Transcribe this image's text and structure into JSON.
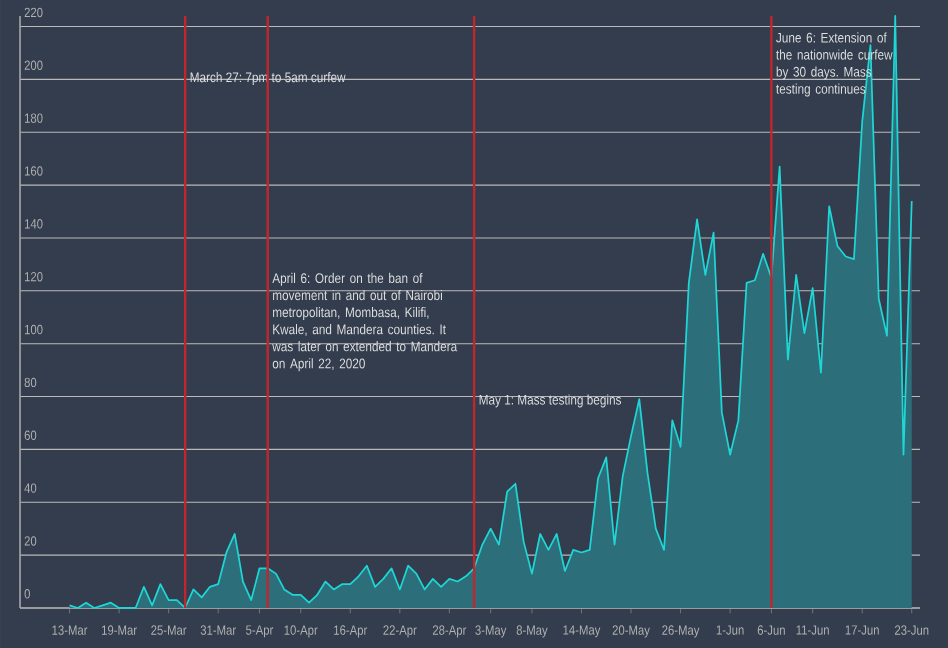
{
  "chart_data": {
    "type": "area",
    "x": [
      "2020-03-13",
      "2020-03-14",
      "2020-03-15",
      "2020-03-16",
      "2020-03-17",
      "2020-03-18",
      "2020-03-19",
      "2020-03-20",
      "2020-03-21",
      "2020-03-22",
      "2020-03-23",
      "2020-03-24",
      "2020-03-25",
      "2020-03-26",
      "2020-03-27",
      "2020-03-28",
      "2020-03-29",
      "2020-03-30",
      "2020-03-31",
      "2020-04-01",
      "2020-04-02",
      "2020-04-03",
      "2020-04-04",
      "2020-04-05",
      "2020-04-06",
      "2020-04-07",
      "2020-04-08",
      "2020-04-09",
      "2020-04-10",
      "2020-04-11",
      "2020-04-12",
      "2020-04-13",
      "2020-04-14",
      "2020-04-15",
      "2020-04-16",
      "2020-04-17",
      "2020-04-18",
      "2020-04-19",
      "2020-04-20",
      "2020-04-21",
      "2020-04-22",
      "2020-04-23",
      "2020-04-24",
      "2020-04-25",
      "2020-04-26",
      "2020-04-27",
      "2020-04-28",
      "2020-04-29",
      "2020-04-30",
      "2020-05-01",
      "2020-05-02",
      "2020-05-03",
      "2020-05-04",
      "2020-05-05",
      "2020-05-06",
      "2020-05-07",
      "2020-05-08",
      "2020-05-09",
      "2020-05-10",
      "2020-05-11",
      "2020-05-12",
      "2020-05-13",
      "2020-05-14",
      "2020-05-15",
      "2020-05-16",
      "2020-05-17",
      "2020-05-18",
      "2020-05-19",
      "2020-05-20",
      "2020-05-21",
      "2020-05-22",
      "2020-05-23",
      "2020-05-24",
      "2020-05-25",
      "2020-05-26",
      "2020-05-27",
      "2020-05-28",
      "2020-05-29",
      "2020-05-30",
      "2020-05-31",
      "2020-06-01",
      "2020-06-02",
      "2020-06-03",
      "2020-06-04",
      "2020-06-05",
      "2020-06-06",
      "2020-06-07",
      "2020-06-08",
      "2020-06-09",
      "2020-06-10",
      "2020-06-11",
      "2020-06-12",
      "2020-06-13",
      "2020-06-14",
      "2020-06-15",
      "2020-06-16",
      "2020-06-17",
      "2020-06-18",
      "2020-06-19",
      "2020-06-20",
      "2020-06-21",
      "2020-06-22",
      "2020-06-23"
    ],
    "series": [
      {
        "color": "#1fd6d6",
        "values": [
          1,
          0,
          2,
          0,
          1,
          2,
          0,
          0,
          0,
          8,
          1,
          9,
          3,
          3,
          0,
          7,
          4,
          8,
          9,
          21,
          28,
          10,
          3,
          15,
          15,
          13,
          7,
          5,
          5,
          2,
          5,
          10,
          7,
          9,
          9,
          12,
          16,
          8,
          11,
          15,
          7,
          16,
          13,
          7,
          11,
          8,
          11,
          10,
          12,
          15,
          24,
          30,
          24,
          44,
          47,
          25,
          13,
          28,
          22,
          28,
          14,
          22,
          21,
          22,
          49,
          57,
          24,
          50,
          65,
          79,
          51,
          30,
          22,
          71,
          61,
          123,
          147,
          126,
          142,
          74,
          58,
          71,
          123,
          124,
          134,
          125,
          167,
          94,
          126,
          104,
          121,
          89,
          152,
          137,
          133,
          132,
          184,
          213,
          117,
          103,
          224,
          58,
          154
        ]
      }
    ],
    "xlim": [
      "2020-03-07",
      "2020-06-24"
    ],
    "xticks": [
      {
        "value": "2020-03-13",
        "label": "13-Mar"
      },
      {
        "value": "2020-03-19",
        "label": "19-Mar"
      },
      {
        "value": "2020-03-25",
        "label": "25-Mar"
      },
      {
        "value": "2020-03-31",
        "label": "31-Mar"
      },
      {
        "value": "2020-04-05",
        "label": "5-Apr"
      },
      {
        "value": "2020-04-10",
        "label": "10-Apr"
      },
      {
        "value": "2020-04-16",
        "label": "16-Apr"
      },
      {
        "value": "2020-04-22",
        "label": "22-Apr"
      },
      {
        "value": "2020-04-28",
        "label": "28-Apr"
      },
      {
        "value": "2020-05-03",
        "label": "3-May"
      },
      {
        "value": "2020-05-08",
        "label": "8-May"
      },
      {
        "value": "2020-05-14",
        "label": "14-May"
      },
      {
        "value": "2020-05-20",
        "label": "20-May"
      },
      {
        "value": "2020-05-26",
        "label": "26-May"
      },
      {
        "value": "2020-06-01",
        "label": "1-Jun"
      },
      {
        "value": "2020-06-06",
        "label": "6-Jun"
      },
      {
        "value": "2020-06-11",
        "label": "11-Jun"
      },
      {
        "value": "2020-06-17",
        "label": "17-Jun"
      },
      {
        "value": "2020-06-23",
        "label": "23-Jun"
      }
    ],
    "ylim": [
      0,
      224
    ],
    "yticks": [
      0,
      20,
      40,
      60,
      80,
      100,
      120,
      140,
      160,
      180,
      200,
      220
    ],
    "grid": "y",
    "ref_lines": [
      {
        "axis": "x",
        "value": "2020-03-27",
        "label": "March 27: 7pm to 5am curfew",
        "color": "#c0272d"
      },
      {
        "axis": "x",
        "value": "2020-04-06",
        "label": "April 6: Order on the ban of movement in and out of Nairobi metropolitan, Mombasa, Kilifi, Kwale, and Mandera counties. It was later on extended to Mandera on April 22, 2020",
        "color": "#c0272d"
      },
      {
        "axis": "x",
        "value": "2020-05-01",
        "label": "May 1: Mass testing begins",
        "color": "#c0272d"
      },
      {
        "axis": "x",
        "value": "2020-06-06",
        "label": "June 6: Extension of the nationwide curfew by 30 days. Mass testing continues",
        "color": "#c0272d"
      }
    ]
  }
}
